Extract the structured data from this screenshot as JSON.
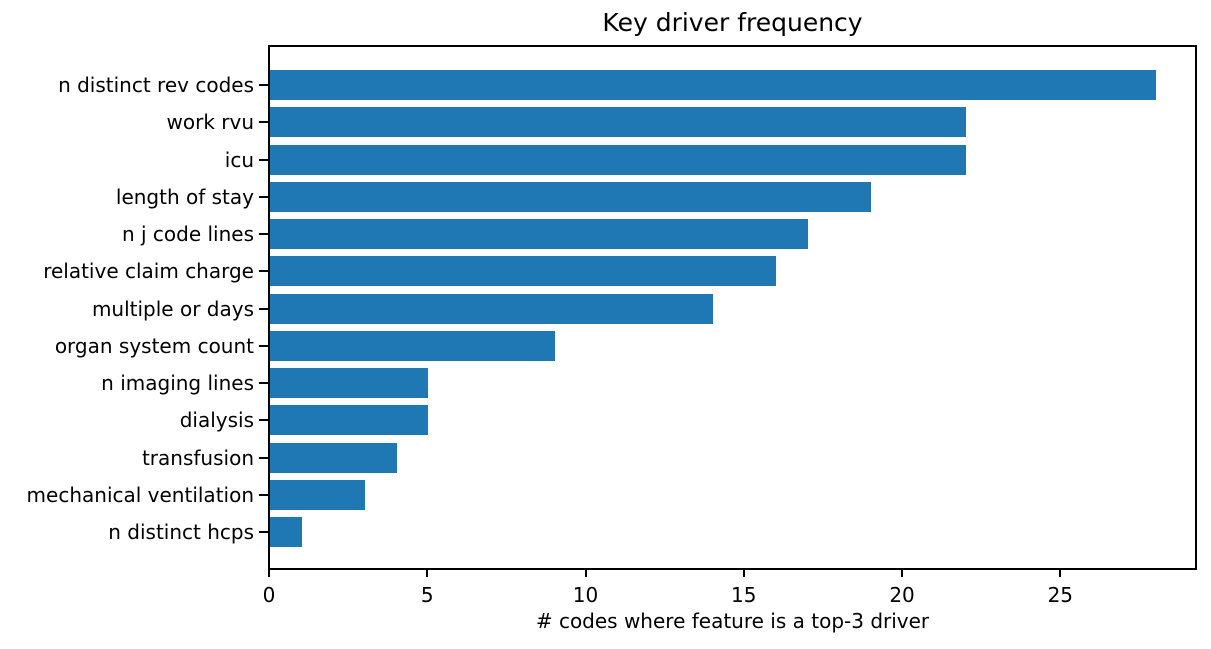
{
  "chart_data": {
    "type": "bar",
    "orientation": "horizontal",
    "title": "Key driver frequency",
    "xlabel": "# codes where feature is a top-3 driver",
    "ylabel": "",
    "categories": [
      "n distinct rev codes",
      "work rvu",
      "icu",
      "length of stay",
      "n j code lines",
      "relative claim charge",
      "multiple or days",
      "organ system count",
      "n imaging lines",
      "dialysis",
      "transfusion",
      "mechanical ventilation",
      "n distinct hcps"
    ],
    "values": [
      28,
      22,
      22,
      19,
      17,
      16,
      14,
      9,
      5,
      5,
      4,
      3,
      1
    ],
    "xticks": [
      0,
      5,
      10,
      15,
      20,
      25
    ],
    "xlim": [
      0,
      29.35
    ],
    "grid": false,
    "legend": null,
    "bar_color": "#1f77b4",
    "text_color": "#000000",
    "spine_color": "#000000",
    "background_color": "#ffffff"
  }
}
